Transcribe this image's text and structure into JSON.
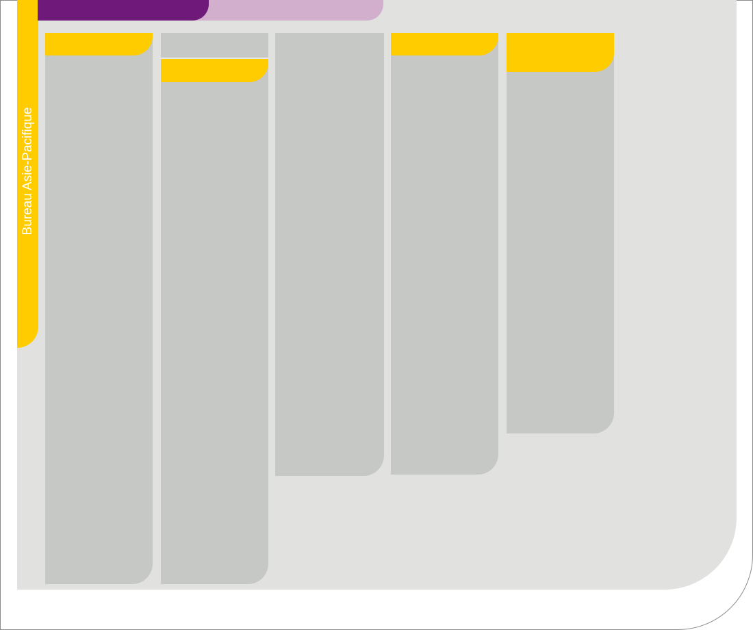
{
  "sidebar": {
    "label": "Bureau Asie-Pacifique"
  },
  "theme": {
    "purple_dark": "#6f1a7b",
    "purple_light": "#d1afcd",
    "yellow": "#ffcc00",
    "panel_gray": "#c6c8c5",
    "board_gray": "#e1e1e0",
    "frame_line": "#8a8a8a"
  },
  "columns": [
    {
      "id": "column-1",
      "tag": "yellow-tab"
    },
    {
      "id": "column-2",
      "tag": "yellow-tab"
    },
    {
      "id": "column-3",
      "tag": null
    },
    {
      "id": "column-4",
      "tag": "yellow-tab"
    },
    {
      "id": "column-5",
      "tag": "yellow-tab"
    }
  ]
}
